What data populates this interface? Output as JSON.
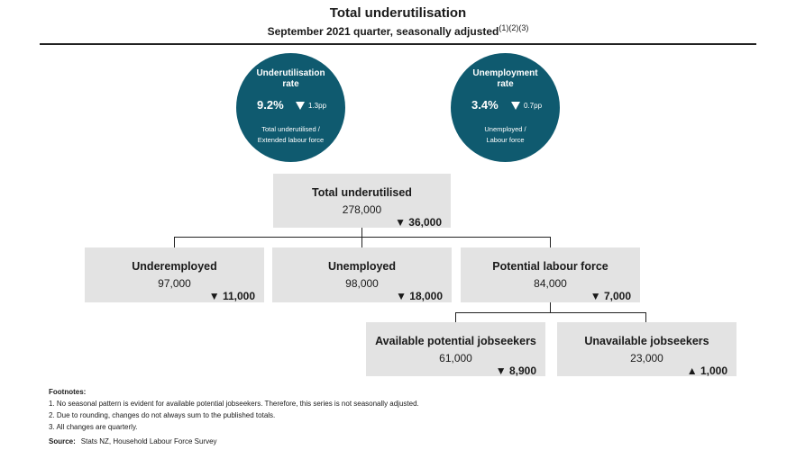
{
  "title": "Total underutilisation",
  "subtitle": "September 2021 quarter, seasonally adjusted",
  "subtitle_refs": "(1)(2)(3)",
  "colors": {
    "circle": "#0f5a6f",
    "box": "#e3e3e3",
    "text": "#1a1a1a"
  },
  "circles": {
    "underutilisation": {
      "label_line1": "Underutilisation",
      "label_line2": "rate",
      "value": "9.2%",
      "change_icon": "triangle-down",
      "change": "1.3pp",
      "desc_line1": "Total underutilised /",
      "desc_line2": "Extended labour force"
    },
    "unemployment": {
      "label_line1": "Unemployment",
      "label_line2": "rate",
      "value": "3.4%",
      "change_icon": "triangle-down",
      "change": "0.7pp",
      "desc_line1": "Unemployed /",
      "desc_line2": "Labour force"
    }
  },
  "boxes": {
    "total": {
      "name": "Total underutilised",
      "value": "278,000",
      "change": "▼ 36,000"
    },
    "underemployed": {
      "name": "Underemployed",
      "value": "97,000",
      "change": "▼ 11,000"
    },
    "unemployed": {
      "name": "Unemployed",
      "value": "98,000",
      "change": "▼ 18,000"
    },
    "potential": {
      "name": "Potential labour force",
      "value": "84,000",
      "change": "▼ 7,000"
    },
    "available": {
      "name": "Available potential jobseekers",
      "value": "61,000",
      "change": "▼ 8,900"
    },
    "unavailable": {
      "name": "Unavailable jobseekers",
      "value": "23,000",
      "change": "▲ 1,000"
    }
  },
  "footnotes": {
    "heading": "Footnotes:",
    "items": [
      "1. No seasonal pattern is evident for available potential jobseekers. Therefore, this series is not seasonally adjusted.",
      "2. Due to rounding, changes do not always sum to the published totals.",
      "3. All changes are quarterly."
    ],
    "source_label": "Source:",
    "source_text": "Stats NZ, Household Labour Force Survey"
  }
}
